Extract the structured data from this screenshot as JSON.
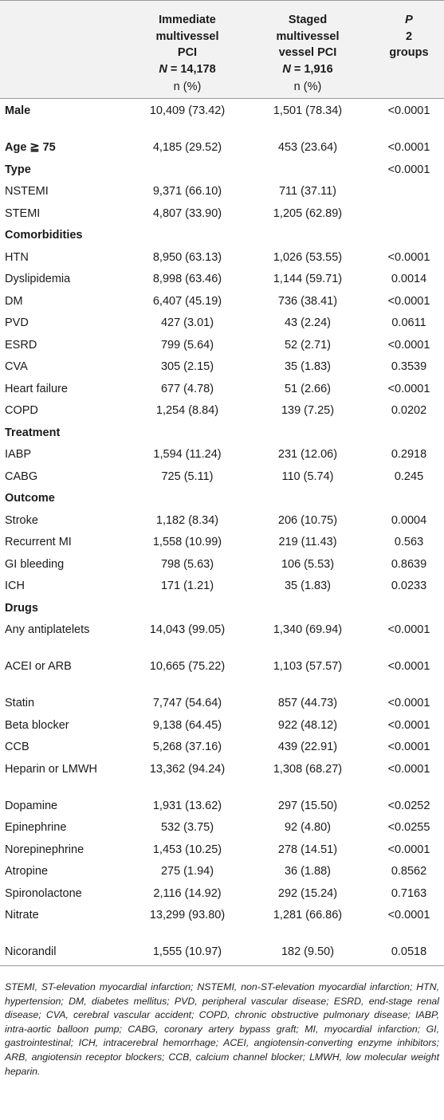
{
  "header": {
    "immediate": {
      "l1": "Immediate",
      "l2": "multivessel",
      "l3": "PCI",
      "n_label": "N",
      "n_value": "= 14,178",
      "unit": "n (%)"
    },
    "staged": {
      "l1": "Staged",
      "l2": "multivessel",
      "l3": "vessel PCI",
      "n_label": "N",
      "n_value": "= 1,916",
      "unit": "n (%)"
    },
    "p": {
      "l1": "P",
      "l2": "2",
      "l3": "groups"
    }
  },
  "rows": [
    {
      "label": "Male",
      "section": true,
      "imm": "10,409 (73.42)",
      "stg": "1,501 (78.34)",
      "p": "<0.0001"
    },
    {
      "label": "Age ≧ 75",
      "section": true,
      "imm": "4,185 (29.52)",
      "stg": "453 (23.64)",
      "p": "<0.0001"
    },
    {
      "label": "Type",
      "section": true,
      "imm": "",
      "stg": "",
      "p": "<0.0001"
    },
    {
      "label": "NSTEMI",
      "section": false,
      "imm": "9,371 (66.10)",
      "stg": "711 (37.11)",
      "p": ""
    },
    {
      "label": "STEMI",
      "section": false,
      "imm": "4,807 (33.90)",
      "stg": "1,205 (62.89)",
      "p": ""
    },
    {
      "label": "Comorbidities",
      "section": true,
      "imm": "",
      "stg": "",
      "p": ""
    },
    {
      "label": "HTN",
      "section": false,
      "imm": "8,950 (63.13)",
      "stg": "1,026 (53.55)",
      "p": "<0.0001"
    },
    {
      "label": "Dyslipidemia",
      "section": false,
      "imm": "8,998 (63.46)",
      "stg": "1,144 (59.71)",
      "p": "0.0014"
    },
    {
      "label": "DM",
      "section": false,
      "imm": "6,407 (45.19)",
      "stg": "736 (38.41)",
      "p": "<0.0001"
    },
    {
      "label": "PVD",
      "section": false,
      "imm": "427 (3.01)",
      "stg": "43 (2.24)",
      "p": "0.0611"
    },
    {
      "label": "ESRD",
      "section": false,
      "imm": "799 (5.64)",
      "stg": "52 (2.71)",
      "p": "<0.0001"
    },
    {
      "label": "CVA",
      "section": false,
      "imm": "305 (2.15)",
      "stg": "35 (1.83)",
      "p": "0.3539"
    },
    {
      "label": "Heart failure",
      "section": false,
      "imm": "677 (4.78)",
      "stg": "51 (2.66)",
      "p": "<0.0001"
    },
    {
      "label": "COPD",
      "section": false,
      "imm": "1,254 (8.84)",
      "stg": "139 (7.25)",
      "p": "0.0202"
    },
    {
      "label": "Treatment",
      "section": true,
      "imm": "",
      "stg": "",
      "p": ""
    },
    {
      "label": "IABP",
      "section": false,
      "imm": "1,594 (11.24)",
      "stg": "231 (12.06)",
      "p": "0.2918"
    },
    {
      "label": "CABG",
      "section": false,
      "imm": "725 (5.11)",
      "stg": "110 (5.74)",
      "p": "0.245"
    },
    {
      "label": "Outcome",
      "section": true,
      "imm": "",
      "stg": "",
      "p": ""
    },
    {
      "label": "Stroke",
      "section": false,
      "imm": "1,182 (8.34)",
      "stg": "206 (10.75)",
      "p": "0.0004"
    },
    {
      "label": "Recurrent MI",
      "section": false,
      "imm": "1,558 (10.99)",
      "stg": "219 (11.43)",
      "p": "0.563"
    },
    {
      "label": "GI bleeding",
      "section": false,
      "imm": "798 (5.63)",
      "stg": "106 (5.53)",
      "p": "0.8639"
    },
    {
      "label": "ICH",
      "section": false,
      "imm": "171 (1.21)",
      "stg": "35 (1.83)",
      "p": "0.0233"
    },
    {
      "label": "Drugs",
      "section": true,
      "imm": "",
      "stg": "",
      "p": ""
    },
    {
      "label": "Any antiplatelets",
      "section": false,
      "imm": "14,043 (99.05)",
      "stg": "1,340 (69.94)",
      "p": "<0.0001"
    },
    {
      "label": "ACEI or ARB",
      "section": false,
      "imm": "10,665 (75.22)",
      "stg": "1,103 (57.57)",
      "p": "<0.0001"
    },
    {
      "label": "Statin",
      "section": false,
      "imm": "7,747 (54.64)",
      "stg": "857 (44.73)",
      "p": "<0.0001"
    },
    {
      "label": "Beta blocker",
      "section": false,
      "imm": "9,138 (64.45)",
      "stg": "922 (48.12)",
      "p": "<0.0001"
    },
    {
      "label": "CCB",
      "section": false,
      "imm": "5,268 (37.16)",
      "stg": "439 (22.91)",
      "p": "<0.0001"
    },
    {
      "label": "Heparin or LMWH",
      "section": false,
      "imm": "13,362 (94.24)",
      "stg": "1,308 (68.27)",
      "p": "<0.0001"
    },
    {
      "label": "Dopamine",
      "section": false,
      "imm": "1,931 (13.62)",
      "stg": "297 (15.50)",
      "p": "<0.0252"
    },
    {
      "label": "Epinephrine",
      "section": false,
      "imm": "532 (3.75)",
      "stg": "92 (4.80)",
      "p": "<0.0255"
    },
    {
      "label": "Norepinephrine",
      "section": false,
      "imm": "1,453 (10.25)",
      "stg": "278 (14.51)",
      "p": "<0.0001"
    },
    {
      "label": "Atropine",
      "section": false,
      "imm": "275 (1.94)",
      "stg": "36 (1.88)",
      "p": "0.8562"
    },
    {
      "label": "Spironolactone",
      "section": false,
      "imm": "2,116 (14.92)",
      "stg": "292 (15.24)",
      "p": "0.7163"
    },
    {
      "label": "Nitrate",
      "section": false,
      "imm": "13,299 (93.80)",
      "stg": "1,281 (66.86)",
      "p": "<0.0001"
    },
    {
      "label": "Nicorandil",
      "section": false,
      "imm": "1,555 (10.97)",
      "stg": "182 (9.50)",
      "p": "0.0518"
    }
  ],
  "footnote": "STEMI, ST-elevation myocardial infarction; NSTEMI, non-ST-elevation myocardial infarction; HTN, hypertension; DM, diabetes mellitus; PVD, peripheral vascular disease; ESRD, end-stage renal disease; CVA, cerebral vascular accident; COPD, chronic obstructive pulmonary disease; IABP, intra-aortic balloon pump; CABG, coronary artery bypass graft; MI, myocardial infarction; GI, gastrointestinal; ICH, intracerebral hemorrhage; ACEI, angiotensin-converting enzyme inhibitors; ARB, angiotensin receptor blockers; CCB, calcium channel blocker; LMWH, low molecular weight heparin."
}
